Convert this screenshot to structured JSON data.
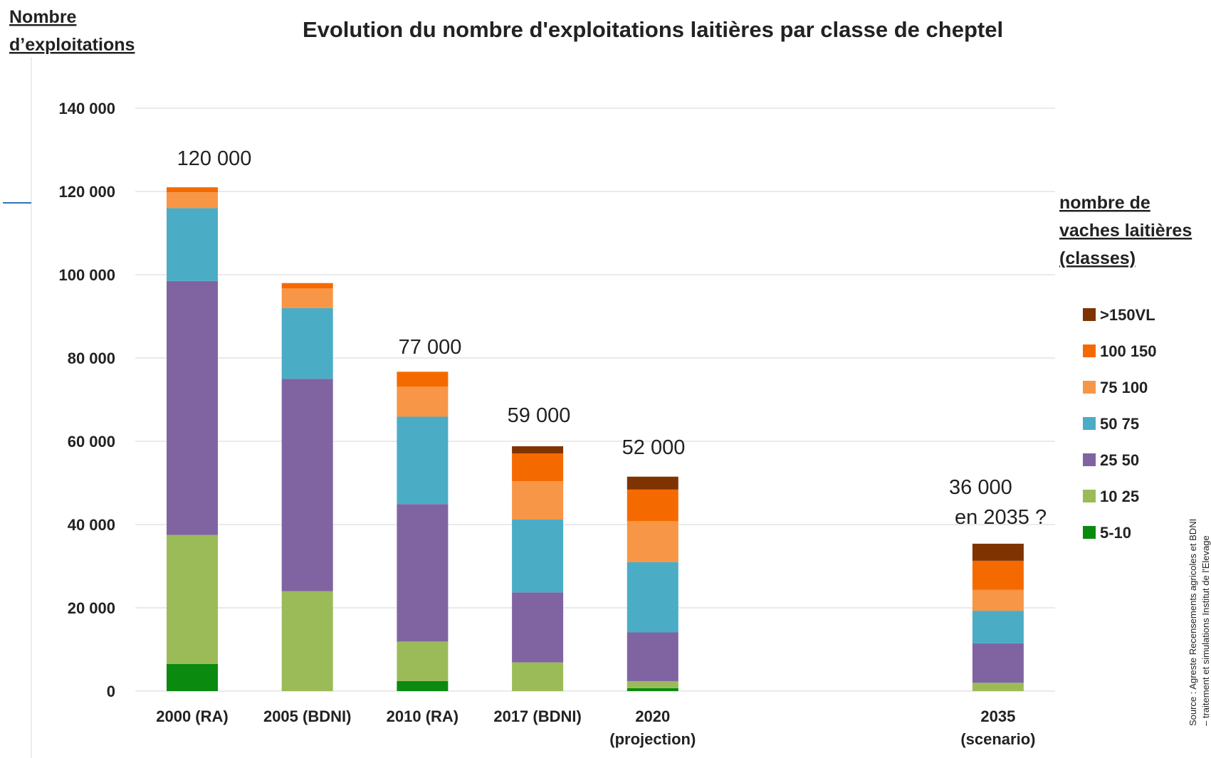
{
  "chart_data": {
    "type": "stacked_bar",
    "title": "Evolution du nombre d'exploitations laitières par classe de cheptel",
    "y_axis_label": "Nombre\nd’exploitations",
    "legend_title": "nombre de\nvaches laitières\n(classes)",
    "source": "Source : Agreste Recensements agricoles et BDNI\n– traitement et simulations Institut de l'Elevage",
    "categories": [
      "2000 (RA)",
      "2005 (BDNI)",
      "2010 (RA)",
      "2017 (BDNI)",
      "2020\n(projection)",
      null,
      null,
      "2035\n(scenario)"
    ],
    "series": [
      {
        "name": "5-10",
        "color": "#0b8a10",
        "values": [
          6500,
          0,
          2400,
          0,
          700,
          null,
          null,
          0
        ]
      },
      {
        "name": "10 25",
        "color": "#9bbb59",
        "values": [
          31000,
          24000,
          9500,
          6900,
          1700,
          null,
          null,
          2000
        ]
      },
      {
        "name": "25 50",
        "color": "#8064a2",
        "values": [
          61000,
          51000,
          33000,
          16800,
          11700,
          null,
          null,
          9500
        ]
      },
      {
        "name": "50 75",
        "color": "#4bacc6",
        "values": [
          17500,
          17000,
          21000,
          17500,
          16900,
          null,
          null,
          7800
        ]
      },
      {
        "name": "75 100",
        "color": "#f79646",
        "values": [
          3800,
          4700,
          7200,
          9200,
          9800,
          null,
          null,
          5000
        ]
      },
      {
        "name": "100 150",
        "color": "#f56a00",
        "values": [
          1200,
          1300,
          3600,
          6700,
          7600,
          null,
          null,
          7000
        ]
      },
      {
        "name": ">150VL",
        "color": "#7f3300",
        "values": [
          0,
          0,
          0,
          1700,
          3100,
          null,
          null,
          4100
        ]
      }
    ],
    "annotations": [
      "120 000",
      "77 000",
      "59 000",
      "52 000",
      "36 000\n en 2035 ?"
    ],
    "ylim": [
      0,
      140000
    ],
    "yticks": [
      0,
      {
        "value": 20000,
        "label": "20 000"
      },
      {
        "value": 40000,
        "label": "40 000"
      },
      {
        "value": 60000,
        "label": "60 000"
      },
      {
        "value": 80000,
        "label": "80 000"
      },
      {
        "value": 100000,
        "label": "100 000"
      },
      {
        "value": 120000,
        "label": "120 000"
      },
      {
        "value": 140000,
        "label": "140 000"
      }
    ],
    "grid": true
  }
}
